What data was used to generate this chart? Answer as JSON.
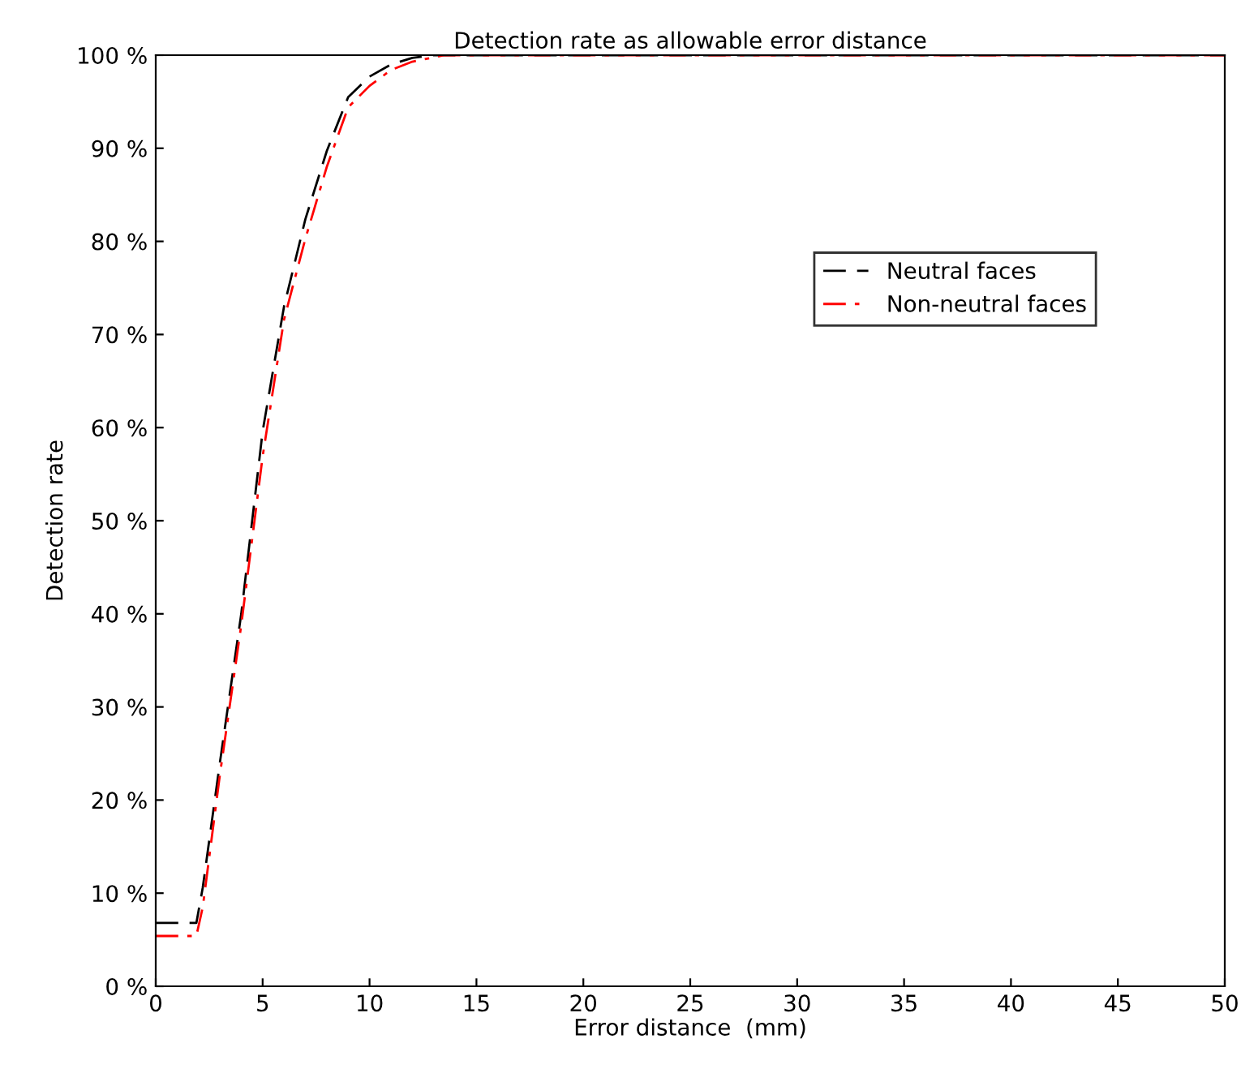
{
  "chart_data": {
    "type": "line",
    "title": "Detection rate as allowable error distance",
    "xlabel": "Error distance  (mm)",
    "ylabel": "Detection rate",
    "series": [
      {
        "name": "Neutral faces",
        "color": "#000000",
        "line_style": "dashed",
        "x": [
          0,
          1.9,
          2.2,
          3,
          4,
          5,
          6,
          7,
          8,
          9,
          10,
          11,
          12,
          13,
          50
        ],
        "values": [
          6.8,
          6.8,
          10.6,
          24,
          40,
          59.6,
          73,
          82.4,
          89.7,
          95.5,
          97.7,
          99,
          99.7,
          100,
          100
        ]
      },
      {
        "name": "Non-neutral faces",
        "color": "#ff0000",
        "line_style": "dashdot",
        "x": [
          0,
          1.9,
          2.2,
          3,
          4,
          5,
          6,
          7,
          8,
          9,
          10,
          11,
          12,
          13.5,
          50
        ],
        "values": [
          5.4,
          5.4,
          8.5,
          22.7,
          38.8,
          56.9,
          71.6,
          80.3,
          88,
          94.4,
          96.7,
          98.4,
          99.3,
          100,
          100
        ]
      }
    ],
    "xlim": [
      0,
      50
    ],
    "xticks": [
      0,
      5,
      10,
      15,
      20,
      25,
      30,
      35,
      40,
      45,
      50
    ],
    "ylim": [
      0,
      100
    ],
    "yticks": [
      {
        "value": 0,
        "label": "0 %"
      },
      {
        "value": 10,
        "label": "10 %"
      },
      {
        "value": 20,
        "label": "20 %"
      },
      {
        "value": 30,
        "label": "30 %"
      },
      {
        "value": 40,
        "label": "40 %"
      },
      {
        "value": 50,
        "label": "50 %"
      },
      {
        "value": 60,
        "label": "60 %"
      },
      {
        "value": 70,
        "label": "70 %"
      },
      {
        "value": 80,
        "label": "80 %"
      },
      {
        "value": 90,
        "label": "90 %"
      },
      {
        "value": 100,
        "label": "100 %"
      }
    ],
    "grid": false,
    "legend": "right"
  }
}
